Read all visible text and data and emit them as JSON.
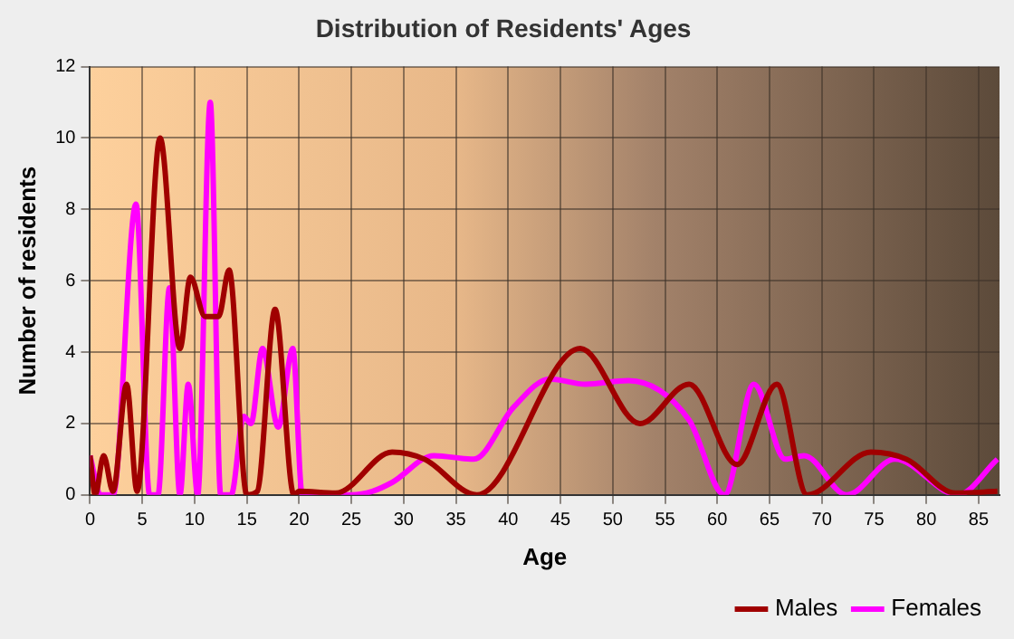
{
  "chart_data": {
    "type": "line",
    "title": "Distribution of Residents' Ages",
    "xlabel": "Age",
    "ylabel": "Number of residents",
    "xlim": [
      0,
      87
    ],
    "xticks": [
      0,
      5,
      10,
      15,
      20,
      25,
      30,
      35,
      40,
      45,
      50,
      55,
      60,
      65,
      70,
      75,
      80,
      85
    ],
    "ylim": [
      0,
      12
    ],
    "yticks": [
      0,
      2,
      4,
      6,
      8,
      10,
      12
    ],
    "grid": true,
    "legend": "bottom right",
    "marker": "none",
    "line_style": "solid",
    "series": [
      {
        "name": "Males",
        "color": "#a00000",
        "x": [
          0,
          0.5,
          1.3,
          2.2,
          3.5,
          4.5,
          6.7,
          8.6,
          9.6,
          11,
          12.3,
          13.3,
          15,
          16,
          17.7,
          19.5,
          20,
          23.5,
          28.9,
          32,
          37,
          46.9,
          52.6,
          57.3,
          61.9,
          65.7,
          68.6,
          74.7,
          78.1,
          82.8,
          86.8
        ],
        "values": [
          1.1,
          0,
          1.1,
          0.1,
          3.1,
          0.1,
          10,
          4.1,
          6.1,
          5,
          5,
          6.3,
          0,
          0.1,
          5.2,
          0,
          0.1,
          0.05,
          1.2,
          1,
          0,
          4.1,
          2,
          3.1,
          0.85,
          3.1,
          0,
          1.2,
          1,
          0.05,
          0.1
        ]
      },
      {
        "name": "Females",
        "color": "#ff00ff",
        "x": [
          0,
          1,
          2.2,
          4.4,
          5.7,
          6.5,
          7.6,
          8.6,
          9.4,
          10.3,
          11.5,
          12.5,
          13.5,
          14.7,
          15.4,
          16.5,
          18,
          19.4,
          20.3,
          25,
          27,
          28.9,
          32.9,
          36.7,
          40.5,
          44,
          47.4,
          51.5,
          57.3,
          60.7,
          63.5,
          66.5,
          68.3,
          72.4,
          77,
          83,
          86.8
        ],
        "values": [
          1.1,
          0,
          0,
          8.15,
          0,
          0,
          5.8,
          0,
          3.1,
          0,
          11,
          0,
          0,
          2.2,
          2,
          4.1,
          1.9,
          4.1,
          0,
          0,
          0.1,
          0.35,
          1.1,
          1,
          2.45,
          3.25,
          3.1,
          3.2,
          2.1,
          0,
          3.1,
          1,
          1.1,
          0,
          1,
          0,
          1
        ]
      }
    ]
  }
}
